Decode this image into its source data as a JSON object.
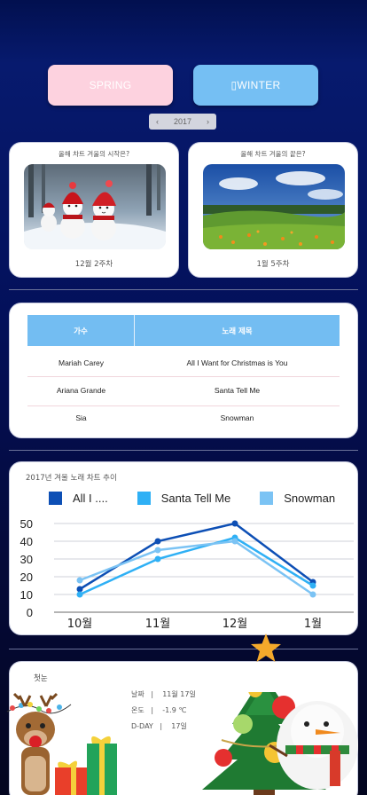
{
  "seasons": {
    "spring_label": "SPRING",
    "winter_label": "▯WINTER"
  },
  "year": {
    "prev": "‹",
    "value": "2017",
    "next": "›"
  },
  "chart_start": {
    "question": "올해 차트 겨울의 시작은?",
    "week": "12월 2주차"
  },
  "chart_end": {
    "question": "올해 차트 겨울의 끝은?",
    "week": "1월 5주차"
  },
  "table": {
    "headers": {
      "artist": "가수",
      "title": "노래 제목"
    },
    "rows": [
      {
        "artist": "Mariah Carey",
        "title": "All I Want for Christmas is You"
      },
      {
        "artist": "Ariana Grande",
        "title": "Santa Tell Me"
      },
      {
        "artist": "Sia",
        "title": "Snowman"
      }
    ]
  },
  "chart_data": {
    "type": "line",
    "title": "2017년 겨울 노래 차트 추이",
    "categories": [
      "10월",
      "11월",
      "12월",
      "1월"
    ],
    "ylim": [
      0,
      50
    ],
    "yticks": [
      "0",
      "10",
      "20",
      "30",
      "40",
      "50"
    ],
    "grid": true,
    "legend_position": "top",
    "series": [
      {
        "name": "All I ....",
        "color": "#0d4fb5",
        "values": [
          13,
          40,
          50,
          17
        ]
      },
      {
        "name": "Santa Tell Me",
        "color": "#2fb0f5",
        "values": [
          10,
          30,
          42,
          15
        ]
      },
      {
        "name": "Snowman",
        "color": "#7bc3f4",
        "values": [
          18,
          35,
          40,
          10
        ]
      }
    ]
  },
  "first_snow": {
    "title": "첫눈",
    "date_line": "날짜   |    11월 17일",
    "temp_line": "온도   |    -1.9 ℃",
    "dday_line": "D-DAY   |    17일"
  }
}
